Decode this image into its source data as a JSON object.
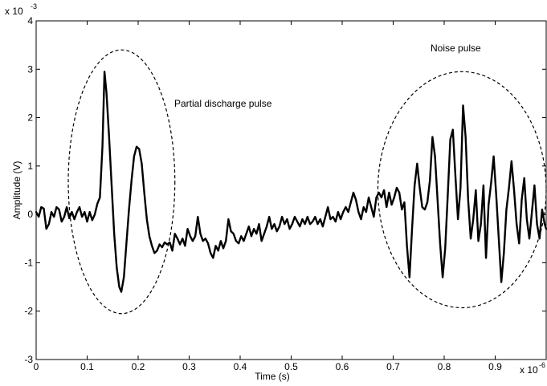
{
  "chart_data": {
    "type": "line",
    "x_scale_label": "x 10",
    "x_scale_exponent": "-6",
    "y_scale_label": "x 10",
    "y_scale_exponent": "-3",
    "xlabel": "Time (s)",
    "ylabel": "Amplitude (V)",
    "xlim": [
      0,
      1
    ],
    "ylim": [
      -3,
      4
    ],
    "xticks": [
      0,
      0.1,
      0.2,
      0.3,
      0.4,
      0.5,
      0.6,
      0.7,
      0.8,
      0.9
    ],
    "xtick_labels": [
      "0",
      "0.1",
      "0.2",
      "0.3",
      "0.4",
      "0.5",
      "0.6",
      "0.7",
      "0.8",
      "0.9"
    ],
    "yticks": [
      -3,
      -2,
      -1,
      0,
      1,
      2,
      3,
      4
    ],
    "ytick_labels": [
      "-3",
      "-2",
      "-1",
      "0",
      "1",
      "2",
      "3",
      "4"
    ],
    "grid": false,
    "line_color": "#000000",
    "annotations": [
      {
        "name": "partial-discharge",
        "text": "Partial discharge pulse",
        "ellipse_x_range": [
          0.063,
          0.272
        ],
        "ellipse_y_range": [
          -2.05,
          3.4
        ]
      },
      {
        "name": "noise",
        "text": "Noise pulse",
        "ellipse_x_range": [
          0.67,
          1.0
        ],
        "ellipse_y_range": [
          -1.93,
          2.95
        ]
      }
    ],
    "series": [
      {
        "points": [
          [
            0.0,
            0.05
          ],
          [
            0.005,
            -0.05
          ],
          [
            0.01,
            0.15
          ],
          [
            0.015,
            0.12
          ],
          [
            0.02,
            -0.3
          ],
          [
            0.025,
            -0.2
          ],
          [
            0.03,
            0.05
          ],
          [
            0.035,
            -0.05
          ],
          [
            0.04,
            0.15
          ],
          [
            0.045,
            0.1
          ],
          [
            0.05,
            -0.15
          ],
          [
            0.055,
            -0.05
          ],
          [
            0.06,
            0.15
          ],
          [
            0.065,
            -0.08
          ],
          [
            0.07,
            0.05
          ],
          [
            0.075,
            -0.1
          ],
          [
            0.08,
            0.05
          ],
          [
            0.085,
            0.15
          ],
          [
            0.09,
            -0.05
          ],
          [
            0.095,
            0.05
          ],
          [
            0.1,
            -0.15
          ],
          [
            0.105,
            0.05
          ],
          [
            0.11,
            -0.12
          ],
          [
            0.115,
            0.0
          ],
          [
            0.12,
            0.22
          ],
          [
            0.125,
            0.35
          ],
          [
            0.13,
            1.4
          ],
          [
            0.134,
            2.95
          ],
          [
            0.138,
            2.5
          ],
          [
            0.143,
            1.6
          ],
          [
            0.148,
            0.6
          ],
          [
            0.153,
            -0.4
          ],
          [
            0.158,
            -1.1
          ],
          [
            0.163,
            -1.5
          ],
          [
            0.167,
            -1.6
          ],
          [
            0.172,
            -1.3
          ],
          [
            0.177,
            -0.6
          ],
          [
            0.182,
            0.1
          ],
          [
            0.187,
            0.7
          ],
          [
            0.192,
            1.2
          ],
          [
            0.197,
            1.4
          ],
          [
            0.202,
            1.35
          ],
          [
            0.207,
            1.05
          ],
          [
            0.212,
            0.45
          ],
          [
            0.217,
            -0.1
          ],
          [
            0.222,
            -0.45
          ],
          [
            0.227,
            -0.65
          ],
          [
            0.232,
            -0.8
          ],
          [
            0.237,
            -0.75
          ],
          [
            0.242,
            -0.62
          ],
          [
            0.247,
            -0.68
          ],
          [
            0.252,
            -0.58
          ],
          [
            0.257,
            -0.62
          ],
          [
            0.262,
            -0.58
          ],
          [
            0.267,
            -0.75
          ],
          [
            0.272,
            -0.4
          ],
          [
            0.277,
            -0.5
          ],
          [
            0.282,
            -0.62
          ],
          [
            0.287,
            -0.5
          ],
          [
            0.292,
            -0.65
          ],
          [
            0.297,
            -0.3
          ],
          [
            0.302,
            -0.45
          ],
          [
            0.307,
            -0.55
          ],
          [
            0.312,
            -0.45
          ],
          [
            0.317,
            -0.05
          ],
          [
            0.322,
            -0.4
          ],
          [
            0.327,
            -0.55
          ],
          [
            0.332,
            -0.5
          ],
          [
            0.337,
            -0.6
          ],
          [
            0.342,
            -0.8
          ],
          [
            0.347,
            -0.9
          ],
          [
            0.352,
            -0.65
          ],
          [
            0.357,
            -0.75
          ],
          [
            0.362,
            -0.55
          ],
          [
            0.367,
            -0.7
          ],
          [
            0.372,
            -0.55
          ],
          [
            0.377,
            -0.1
          ],
          [
            0.382,
            -0.35
          ],
          [
            0.387,
            -0.4
          ],
          [
            0.392,
            -0.55
          ],
          [
            0.397,
            -0.6
          ],
          [
            0.402,
            -0.45
          ],
          [
            0.407,
            -0.55
          ],
          [
            0.412,
            -0.4
          ],
          [
            0.417,
            -0.25
          ],
          [
            0.422,
            -0.45
          ],
          [
            0.427,
            -0.3
          ],
          [
            0.432,
            -0.4
          ],
          [
            0.437,
            -0.2
          ],
          [
            0.442,
            -0.55
          ],
          [
            0.447,
            -0.4
          ],
          [
            0.452,
            -0.25
          ],
          [
            0.457,
            -0.05
          ],
          [
            0.462,
            -0.3
          ],
          [
            0.467,
            -0.2
          ],
          [
            0.472,
            -0.35
          ],
          [
            0.477,
            -0.25
          ],
          [
            0.482,
            -0.05
          ],
          [
            0.487,
            -0.2
          ],
          [
            0.492,
            -0.1
          ],
          [
            0.497,
            -0.3
          ],
          [
            0.502,
            -0.2
          ],
          [
            0.507,
            -0.05
          ],
          [
            0.512,
            -0.15
          ],
          [
            0.517,
            -0.25
          ],
          [
            0.522,
            -0.1
          ],
          [
            0.527,
            -0.2
          ],
          [
            0.532,
            -0.05
          ],
          [
            0.537,
            -0.2
          ],
          [
            0.542,
            -0.15
          ],
          [
            0.547,
            -0.05
          ],
          [
            0.552,
            -0.2
          ],
          [
            0.557,
            -0.1
          ],
          [
            0.562,
            -0.25
          ],
          [
            0.567,
            -0.05
          ],
          [
            0.572,
            0.15
          ],
          [
            0.577,
            -0.1
          ],
          [
            0.582,
            -0.05
          ],
          [
            0.587,
            -0.15
          ],
          [
            0.592,
            0.05
          ],
          [
            0.597,
            -0.1
          ],
          [
            0.602,
            0.05
          ],
          [
            0.607,
            0.15
          ],
          [
            0.612,
            0.05
          ],
          [
            0.617,
            0.25
          ],
          [
            0.622,
            0.45
          ],
          [
            0.627,
            0.3
          ],
          [
            0.632,
            0.05
          ],
          [
            0.637,
            -0.1
          ],
          [
            0.642,
            0.15
          ],
          [
            0.647,
            0.05
          ],
          [
            0.652,
            0.35
          ],
          [
            0.657,
            0.15
          ],
          [
            0.662,
            -0.05
          ],
          [
            0.667,
            0.35
          ],
          [
            0.672,
            0.45
          ],
          [
            0.677,
            0.35
          ],
          [
            0.682,
            0.5
          ],
          [
            0.687,
            0.15
          ],
          [
            0.692,
            0.45
          ],
          [
            0.697,
            0.2
          ],
          [
            0.702,
            0.35
          ],
          [
            0.707,
            0.55
          ],
          [
            0.712,
            0.45
          ],
          [
            0.717,
            0.1
          ],
          [
            0.722,
            0.25
          ],
          [
            0.727,
            -0.65
          ],
          [
            0.732,
            -1.3
          ],
          [
            0.737,
            -0.3
          ],
          [
            0.742,
            0.6
          ],
          [
            0.747,
            1.05
          ],
          [
            0.752,
            0.55
          ],
          [
            0.757,
            0.15
          ],
          [
            0.762,
            0.1
          ],
          [
            0.767,
            0.25
          ],
          [
            0.772,
            0.7
          ],
          [
            0.777,
            1.6
          ],
          [
            0.782,
            1.2
          ],
          [
            0.787,
            0.3
          ],
          [
            0.792,
            -0.6
          ],
          [
            0.797,
            -1.3
          ],
          [
            0.802,
            -0.7
          ],
          [
            0.807,
            0.4
          ],
          [
            0.812,
            1.55
          ],
          [
            0.817,
            1.75
          ],
          [
            0.822,
            0.8
          ],
          [
            0.827,
            -0.1
          ],
          [
            0.832,
            0.55
          ],
          [
            0.837,
            2.25
          ],
          [
            0.842,
            1.6
          ],
          [
            0.847,
            0.3
          ],
          [
            0.852,
            -0.5
          ],
          [
            0.857,
            -0.1
          ],
          [
            0.862,
            0.5
          ],
          [
            0.867,
            -0.55
          ],
          [
            0.872,
            -0.2
          ],
          [
            0.877,
            0.6
          ],
          [
            0.882,
            -0.9
          ],
          [
            0.887,
            0.2
          ],
          [
            0.892,
            0.65
          ],
          [
            0.897,
            1.2
          ],
          [
            0.902,
            0.4
          ],
          [
            0.907,
            -0.5
          ],
          [
            0.912,
            -1.4
          ],
          [
            0.917,
            -0.8
          ],
          [
            0.922,
            0.1
          ],
          [
            0.927,
            0.55
          ],
          [
            0.932,
            1.1
          ],
          [
            0.937,
            0.5
          ],
          [
            0.942,
            -0.2
          ],
          [
            0.947,
            -0.6
          ],
          [
            0.952,
            0.3
          ],
          [
            0.957,
            0.75
          ],
          [
            0.962,
            -0.1
          ],
          [
            0.967,
            -0.5
          ],
          [
            0.972,
            0.05
          ],
          [
            0.977,
            0.6
          ],
          [
            0.982,
            -0.2
          ],
          [
            0.987,
            -0.5
          ],
          [
            0.992,
            0.1
          ],
          [
            0.997,
            -0.2
          ],
          [
            1.0,
            -0.3
          ]
        ]
      }
    ]
  }
}
